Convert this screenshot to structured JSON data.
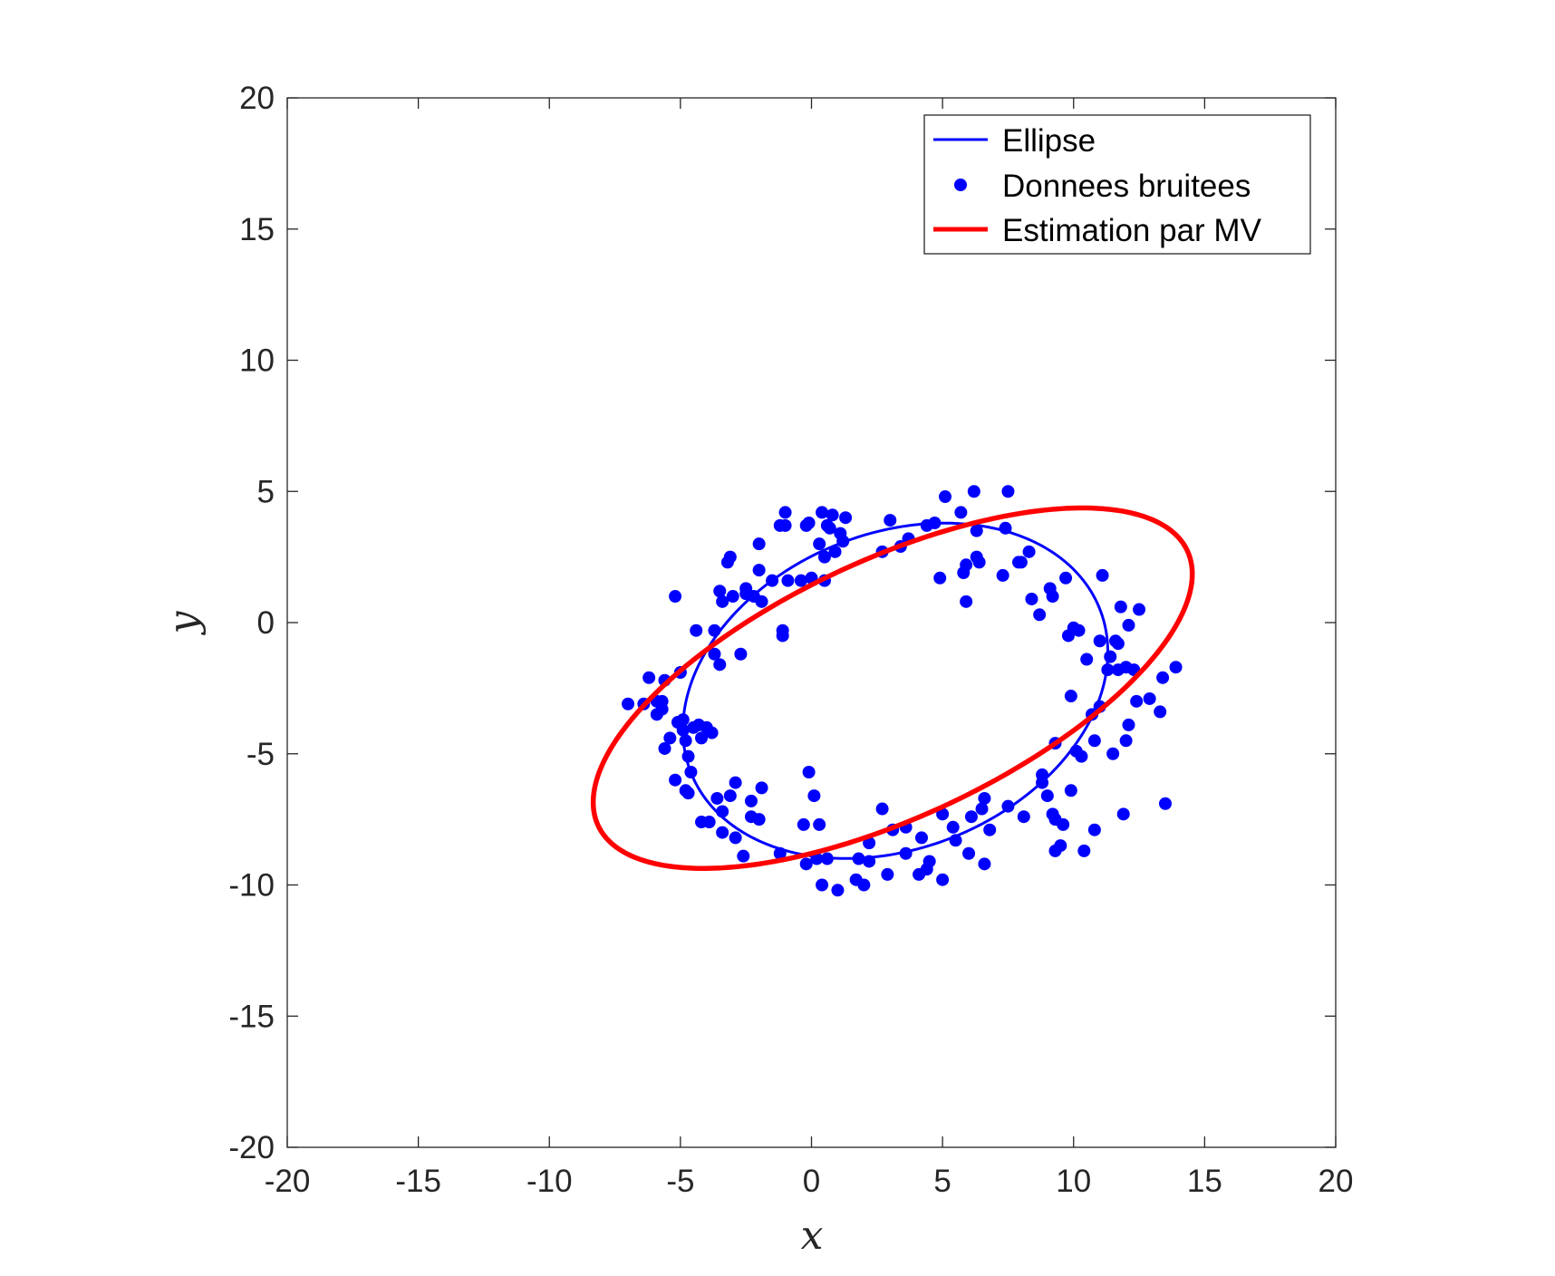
{
  "chart_data": {
    "type": "scatter",
    "xlabel": "x",
    "ylabel": "y",
    "xlim": [
      -20,
      20
    ],
    "ylim": [
      -20,
      20
    ],
    "xticks": [
      -20,
      -15,
      -10,
      -5,
      0,
      5,
      10,
      15,
      20
    ],
    "yticks": [
      -20,
      -15,
      -10,
      -5,
      0,
      5,
      10,
      15,
      20
    ],
    "xtick_labels": [
      "-20",
      "-15",
      "-10",
      "-5",
      "0",
      "5",
      "10",
      "15",
      "20"
    ],
    "ytick_labels": [
      "-20",
      "-15",
      "-10",
      "-5",
      "0",
      "5",
      "10",
      "15",
      "20"
    ],
    "grid": false,
    "legend_position": "top-right",
    "legend": {
      "ellipse": "Ellipse",
      "points": "Donnees bruitees",
      "estimate": "Estimation par MV"
    },
    "colors": {
      "ellipse": "#0000ff",
      "points": "#0000ff",
      "estimate": "#ff0000",
      "axes": "#262626"
    },
    "series": [
      {
        "name": "Ellipse",
        "kind": "line",
        "center": [
          3.2,
          -2.6
        ],
        "semi_axes": [
          8.4,
          6.0
        ],
        "rotation_deg": 22
      },
      {
        "name": "Donnees bruitees",
        "kind": "scatter",
        "points": [
          [
            -7.0,
            -3.1
          ],
          [
            -6.4,
            -3.1
          ],
          [
            -6.2,
            -2.1
          ],
          [
            -5.9,
            -3.5
          ],
          [
            -5.9,
            -3.0
          ],
          [
            -5.7,
            -3.0
          ],
          [
            -5.7,
            -3.3
          ],
          [
            -5.6,
            -2.2
          ],
          [
            -5.6,
            -4.8
          ],
          [
            -5.4,
            -4.4
          ],
          [
            -5.2,
            1.0
          ],
          [
            -5.2,
            -6.0
          ],
          [
            -5.1,
            -3.8
          ],
          [
            -5.0,
            -1.9
          ],
          [
            -4.9,
            -4.1
          ],
          [
            -4.9,
            -3.7
          ],
          [
            -4.8,
            -6.4
          ],
          [
            -4.8,
            -4.5
          ],
          [
            -4.7,
            -5.1
          ],
          [
            -4.7,
            -6.5
          ],
          [
            -4.6,
            -5.7
          ],
          [
            -4.5,
            -4.0
          ],
          [
            -4.4,
            -0.3
          ],
          [
            -4.3,
            -3.9
          ],
          [
            -4.2,
            -4.4
          ],
          [
            -4.2,
            -7.6
          ],
          [
            -4.0,
            -4.0
          ],
          [
            -3.9,
            -7.6
          ],
          [
            -3.8,
            -4.2
          ],
          [
            -3.7,
            -0.3
          ],
          [
            -3.7,
            -1.2
          ],
          [
            -3.6,
            -6.7
          ],
          [
            -3.5,
            -1.6
          ],
          [
            -3.5,
            1.2
          ],
          [
            -3.4,
            -8.0
          ],
          [
            -3.4,
            0.8
          ],
          [
            -3.4,
            -7.2
          ],
          [
            -3.2,
            2.3
          ],
          [
            -3.1,
            2.5
          ],
          [
            -3.1,
            -6.6
          ],
          [
            -3.0,
            1.0
          ],
          [
            -2.9,
            -8.2
          ],
          [
            -2.9,
            -6.1
          ],
          [
            -2.7,
            -1.2
          ],
          [
            -2.6,
            -8.9
          ],
          [
            -2.5,
            1.3
          ],
          [
            -2.5,
            1.1
          ],
          [
            -2.3,
            -7.4
          ],
          [
            -2.3,
            -6.8
          ],
          [
            -2.2,
            1.0
          ],
          [
            -2.0,
            -7.5
          ],
          [
            -2.0,
            3.0
          ],
          [
            -2.0,
            2.0
          ],
          [
            -1.9,
            -6.3
          ],
          [
            -1.9,
            0.8
          ],
          [
            -1.5,
            1.6
          ],
          [
            -1.2,
            -8.8
          ],
          [
            -1.2,
            3.7
          ],
          [
            -1.1,
            -0.3
          ],
          [
            -1.1,
            -0.5
          ],
          [
            -1.0,
            4.2
          ],
          [
            -1.0,
            3.7
          ],
          [
            -0.9,
            1.6
          ],
          [
            -0.4,
            1.6
          ],
          [
            -0.3,
            -7.7
          ],
          [
            -0.2,
            -9.2
          ],
          [
            -0.2,
            3.7
          ],
          [
            -0.1,
            -5.7
          ],
          [
            -0.1,
            3.8
          ],
          [
            0.0,
            1.7
          ],
          [
            0.1,
            -6.6
          ],
          [
            0.2,
            -9.0
          ],
          [
            0.3,
            3.0
          ],
          [
            0.3,
            -7.7
          ],
          [
            0.4,
            4.2
          ],
          [
            0.4,
            -10.0
          ],
          [
            0.5,
            2.5
          ],
          [
            0.5,
            1.6
          ],
          [
            0.6,
            3.7
          ],
          [
            0.6,
            -9.0
          ],
          [
            0.7,
            3.6
          ],
          [
            0.8,
            4.1
          ],
          [
            0.9,
            2.7
          ],
          [
            1.0,
            -10.2
          ],
          [
            1.1,
            3.4
          ],
          [
            1.2,
            3.1
          ],
          [
            1.3,
            4.0
          ],
          [
            1.7,
            -9.8
          ],
          [
            1.8,
            -9.0
          ],
          [
            2.0,
            -10.0
          ],
          [
            2.2,
            -8.4
          ],
          [
            2.2,
            -9.1
          ],
          [
            2.7,
            -7.1
          ],
          [
            2.7,
            2.7
          ],
          [
            2.9,
            -9.6
          ],
          [
            3.0,
            3.9
          ],
          [
            3.1,
            -7.9
          ],
          [
            3.4,
            2.9
          ],
          [
            3.6,
            -7.8
          ],
          [
            3.6,
            -8.8
          ],
          [
            3.7,
            3.2
          ],
          [
            4.1,
            -9.6
          ],
          [
            4.2,
            -8.2
          ],
          [
            4.4,
            -9.4
          ],
          [
            4.4,
            3.7
          ],
          [
            4.5,
            -9.1
          ],
          [
            4.7,
            3.8
          ],
          [
            4.9,
            1.7
          ],
          [
            5.0,
            -7.3
          ],
          [
            5.0,
            -9.8
          ],
          [
            5.1,
            4.8
          ],
          [
            5.4,
            -7.8
          ],
          [
            5.5,
            -8.3
          ],
          [
            5.7,
            4.2
          ],
          [
            5.8,
            1.9
          ],
          [
            5.9,
            2.2
          ],
          [
            5.9,
            0.8
          ],
          [
            6.0,
            -8.8
          ],
          [
            6.1,
            -7.4
          ],
          [
            6.2,
            5.0
          ],
          [
            6.3,
            2.5
          ],
          [
            6.3,
            3.5
          ],
          [
            6.4,
            2.3
          ],
          [
            6.5,
            -7.1
          ],
          [
            6.6,
            -9.2
          ],
          [
            6.6,
            -6.7
          ],
          [
            6.8,
            -7.9
          ],
          [
            7.3,
            1.8
          ],
          [
            7.4,
            3.6
          ],
          [
            7.5,
            -7.0
          ],
          [
            7.5,
            5.0
          ],
          [
            7.9,
            2.3
          ],
          [
            8.0,
            2.3
          ],
          [
            8.1,
            -7.4
          ],
          [
            8.3,
            2.7
          ],
          [
            8.4,
            0.9
          ],
          [
            8.7,
            0.3
          ],
          [
            8.8,
            -5.8
          ],
          [
            8.8,
            -6.1
          ],
          [
            9.0,
            -6.6
          ],
          [
            9.1,
            1.3
          ],
          [
            9.2,
            -7.3
          ],
          [
            9.2,
            1.0
          ],
          [
            9.3,
            -8.7
          ],
          [
            9.3,
            -7.5
          ],
          [
            9.3,
            -4.6
          ],
          [
            9.5,
            -8.5
          ],
          [
            9.6,
            -7.7
          ],
          [
            9.7,
            1.7
          ],
          [
            9.8,
            -0.5
          ],
          [
            9.9,
            -6.4
          ],
          [
            9.9,
            -2.8
          ],
          [
            10.0,
            -0.2
          ],
          [
            10.1,
            -4.9
          ],
          [
            10.2,
            -0.3
          ],
          [
            10.3,
            -5.1
          ],
          [
            10.4,
            -8.7
          ],
          [
            10.5,
            -1.4
          ],
          [
            10.7,
            -3.5
          ],
          [
            10.8,
            -7.9
          ],
          [
            10.8,
            -4.5
          ],
          [
            11.0,
            -0.7
          ],
          [
            11.0,
            -3.2
          ],
          [
            11.1,
            1.8
          ],
          [
            11.3,
            -1.8
          ],
          [
            11.4,
            -1.3
          ],
          [
            11.5,
            -5.0
          ],
          [
            11.6,
            -0.7
          ],
          [
            11.7,
            -1.8
          ],
          [
            11.7,
            -0.8
          ],
          [
            11.8,
            0.6
          ],
          [
            11.9,
            -7.3
          ],
          [
            12.0,
            -4.5
          ],
          [
            12.0,
            -1.7
          ],
          [
            12.1,
            -3.9
          ],
          [
            12.1,
            -0.1
          ],
          [
            12.3,
            -1.8
          ],
          [
            12.4,
            -3.0
          ],
          [
            12.5,
            0.5
          ],
          [
            12.9,
            -2.9
          ],
          [
            13.3,
            -3.4
          ],
          [
            13.4,
            -2.1
          ],
          [
            13.5,
            -6.9
          ],
          [
            13.9,
            -1.7
          ]
        ]
      },
      {
        "name": "Estimation par MV",
        "kind": "line",
        "center": [
          3.1,
          -2.5
        ],
        "semi_axes": [
          12.4,
          4.9
        ],
        "rotation_deg": 25
      }
    ]
  }
}
